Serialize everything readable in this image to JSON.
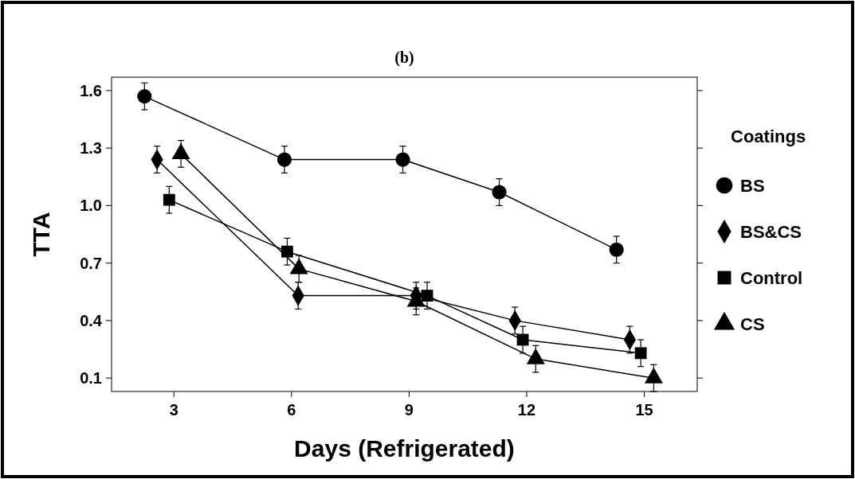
{
  "chart_data": {
    "type": "line",
    "title": "(b)",
    "xlabel": "Days (Refrigerated)",
    "ylabel": "TTA",
    "legend_title": "Coatings",
    "legend": "right",
    "grid": false,
    "xlim": [
      1.41,
      16.35
    ],
    "xticks": [
      3,
      6,
      9,
      12,
      15
    ],
    "ylim": [
      0.03,
      1.67
    ],
    "yticks": [
      0.1,
      0.4,
      0.7,
      {
        "value": 1,
        "label": "1.0"
      },
      1.3,
      1.6
    ],
    "series": [
      {
        "name": "BS",
        "color": "#000000",
        "marker": "circle",
        "x": [
          2.25,
          5.82,
          8.84,
          11.3,
          14.29
        ],
        "values": [
          1.57,
          1.24,
          1.24,
          1.07,
          0.77
        ],
        "errors": [
          0.07,
          0.07,
          0.07,
          0.07,
          0.07
        ]
      },
      {
        "name": "BS&CS",
        "color": "#000000",
        "marker": "diamond",
        "x": [
          2.57,
          6.17,
          9.18,
          11.7,
          14.63
        ],
        "values": [
          1.24,
          0.53,
          0.53,
          0.4,
          0.3
        ],
        "errors": [
          0.07,
          0.07,
          0.07,
          0.07,
          0.07
        ]
      },
      {
        "name": "Control",
        "color": "#000000",
        "marker": "square",
        "x": [
          2.88,
          5.89,
          9.46,
          11.9,
          14.91
        ],
        "values": [
          1.03,
          0.76,
          0.53,
          0.3,
          0.23
        ],
        "errors": [
          0.07,
          0.07,
          0.07,
          0.07,
          0.07
        ]
      },
      {
        "name": "CS",
        "color": "#000000",
        "marker": "triangle",
        "x": [
          3.18,
          6.19,
          9.18,
          12.23,
          15.24
        ],
        "values": [
          1.27,
          0.67,
          0.5,
          0.2,
          0.1
        ],
        "errors": [
          0.07,
          0.07,
          0.07,
          0.07,
          0.07
        ]
      }
    ]
  }
}
